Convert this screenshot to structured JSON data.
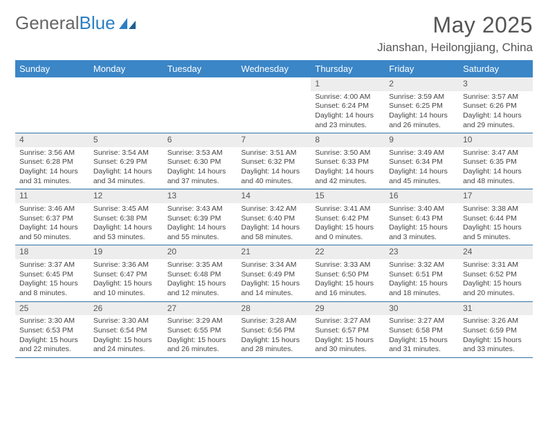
{
  "logo": {
    "text1": "General",
    "text2": "Blue"
  },
  "header": {
    "month_title": "May 2025",
    "location": "Jianshan, Heilongjiang, China"
  },
  "colors": {
    "header_bg": "#3b86c7",
    "header_text": "#ffffff",
    "daynum_bg": "#ededed",
    "row_border": "#2f6fa8",
    "logo_blue": "#2c7fc4",
    "body_text": "#444444"
  },
  "weekdays": [
    "Sunday",
    "Monday",
    "Tuesday",
    "Wednesday",
    "Thursday",
    "Friday",
    "Saturday"
  ],
  "rows": [
    [
      null,
      null,
      null,
      null,
      {
        "n": "1",
        "sr": "Sunrise: 4:00 AM",
        "ss": "Sunset: 6:24 PM",
        "d1": "Daylight: 14 hours",
        "d2": "and 23 minutes."
      },
      {
        "n": "2",
        "sr": "Sunrise: 3:59 AM",
        "ss": "Sunset: 6:25 PM",
        "d1": "Daylight: 14 hours",
        "d2": "and 26 minutes."
      },
      {
        "n": "3",
        "sr": "Sunrise: 3:57 AM",
        "ss": "Sunset: 6:26 PM",
        "d1": "Daylight: 14 hours",
        "d2": "and 29 minutes."
      }
    ],
    [
      {
        "n": "4",
        "sr": "Sunrise: 3:56 AM",
        "ss": "Sunset: 6:28 PM",
        "d1": "Daylight: 14 hours",
        "d2": "and 31 minutes."
      },
      {
        "n": "5",
        "sr": "Sunrise: 3:54 AM",
        "ss": "Sunset: 6:29 PM",
        "d1": "Daylight: 14 hours",
        "d2": "and 34 minutes."
      },
      {
        "n": "6",
        "sr": "Sunrise: 3:53 AM",
        "ss": "Sunset: 6:30 PM",
        "d1": "Daylight: 14 hours",
        "d2": "and 37 minutes."
      },
      {
        "n": "7",
        "sr": "Sunrise: 3:51 AM",
        "ss": "Sunset: 6:32 PM",
        "d1": "Daylight: 14 hours",
        "d2": "and 40 minutes."
      },
      {
        "n": "8",
        "sr": "Sunrise: 3:50 AM",
        "ss": "Sunset: 6:33 PM",
        "d1": "Daylight: 14 hours",
        "d2": "and 42 minutes."
      },
      {
        "n": "9",
        "sr": "Sunrise: 3:49 AM",
        "ss": "Sunset: 6:34 PM",
        "d1": "Daylight: 14 hours",
        "d2": "and 45 minutes."
      },
      {
        "n": "10",
        "sr": "Sunrise: 3:47 AM",
        "ss": "Sunset: 6:35 PM",
        "d1": "Daylight: 14 hours",
        "d2": "and 48 minutes."
      }
    ],
    [
      {
        "n": "11",
        "sr": "Sunrise: 3:46 AM",
        "ss": "Sunset: 6:37 PM",
        "d1": "Daylight: 14 hours",
        "d2": "and 50 minutes."
      },
      {
        "n": "12",
        "sr": "Sunrise: 3:45 AM",
        "ss": "Sunset: 6:38 PM",
        "d1": "Daylight: 14 hours",
        "d2": "and 53 minutes."
      },
      {
        "n": "13",
        "sr": "Sunrise: 3:43 AM",
        "ss": "Sunset: 6:39 PM",
        "d1": "Daylight: 14 hours",
        "d2": "and 55 minutes."
      },
      {
        "n": "14",
        "sr": "Sunrise: 3:42 AM",
        "ss": "Sunset: 6:40 PM",
        "d1": "Daylight: 14 hours",
        "d2": "and 58 minutes."
      },
      {
        "n": "15",
        "sr": "Sunrise: 3:41 AM",
        "ss": "Sunset: 6:42 PM",
        "d1": "Daylight: 15 hours",
        "d2": "and 0 minutes."
      },
      {
        "n": "16",
        "sr": "Sunrise: 3:40 AM",
        "ss": "Sunset: 6:43 PM",
        "d1": "Daylight: 15 hours",
        "d2": "and 3 minutes."
      },
      {
        "n": "17",
        "sr": "Sunrise: 3:38 AM",
        "ss": "Sunset: 6:44 PM",
        "d1": "Daylight: 15 hours",
        "d2": "and 5 minutes."
      }
    ],
    [
      {
        "n": "18",
        "sr": "Sunrise: 3:37 AM",
        "ss": "Sunset: 6:45 PM",
        "d1": "Daylight: 15 hours",
        "d2": "and 8 minutes."
      },
      {
        "n": "19",
        "sr": "Sunrise: 3:36 AM",
        "ss": "Sunset: 6:47 PM",
        "d1": "Daylight: 15 hours",
        "d2": "and 10 minutes."
      },
      {
        "n": "20",
        "sr": "Sunrise: 3:35 AM",
        "ss": "Sunset: 6:48 PM",
        "d1": "Daylight: 15 hours",
        "d2": "and 12 minutes."
      },
      {
        "n": "21",
        "sr": "Sunrise: 3:34 AM",
        "ss": "Sunset: 6:49 PM",
        "d1": "Daylight: 15 hours",
        "d2": "and 14 minutes."
      },
      {
        "n": "22",
        "sr": "Sunrise: 3:33 AM",
        "ss": "Sunset: 6:50 PM",
        "d1": "Daylight: 15 hours",
        "d2": "and 16 minutes."
      },
      {
        "n": "23",
        "sr": "Sunrise: 3:32 AM",
        "ss": "Sunset: 6:51 PM",
        "d1": "Daylight: 15 hours",
        "d2": "and 18 minutes."
      },
      {
        "n": "24",
        "sr": "Sunrise: 3:31 AM",
        "ss": "Sunset: 6:52 PM",
        "d1": "Daylight: 15 hours",
        "d2": "and 20 minutes."
      }
    ],
    [
      {
        "n": "25",
        "sr": "Sunrise: 3:30 AM",
        "ss": "Sunset: 6:53 PM",
        "d1": "Daylight: 15 hours",
        "d2": "and 22 minutes."
      },
      {
        "n": "26",
        "sr": "Sunrise: 3:30 AM",
        "ss": "Sunset: 6:54 PM",
        "d1": "Daylight: 15 hours",
        "d2": "and 24 minutes."
      },
      {
        "n": "27",
        "sr": "Sunrise: 3:29 AM",
        "ss": "Sunset: 6:55 PM",
        "d1": "Daylight: 15 hours",
        "d2": "and 26 minutes."
      },
      {
        "n": "28",
        "sr": "Sunrise: 3:28 AM",
        "ss": "Sunset: 6:56 PM",
        "d1": "Daylight: 15 hours",
        "d2": "and 28 minutes."
      },
      {
        "n": "29",
        "sr": "Sunrise: 3:27 AM",
        "ss": "Sunset: 6:57 PM",
        "d1": "Daylight: 15 hours",
        "d2": "and 30 minutes."
      },
      {
        "n": "30",
        "sr": "Sunrise: 3:27 AM",
        "ss": "Sunset: 6:58 PM",
        "d1": "Daylight: 15 hours",
        "d2": "and 31 minutes."
      },
      {
        "n": "31",
        "sr": "Sunrise: 3:26 AM",
        "ss": "Sunset: 6:59 PM",
        "d1": "Daylight: 15 hours",
        "d2": "and 33 minutes."
      }
    ]
  ]
}
